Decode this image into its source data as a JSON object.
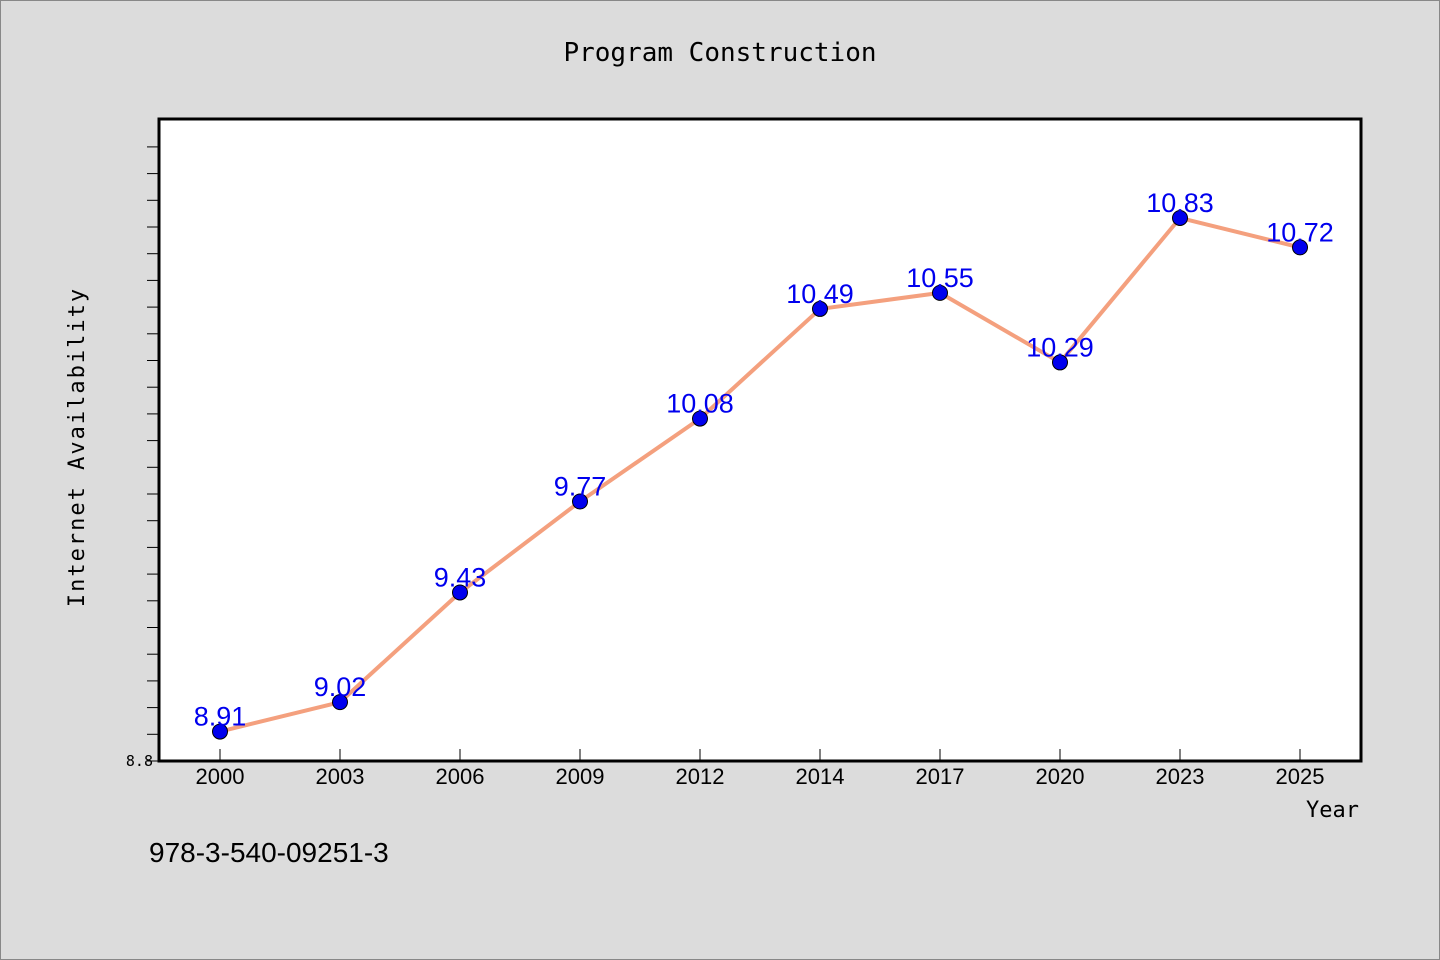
{
  "chart_data": {
    "type": "line",
    "title": "Program Construction",
    "xlabel": "Year",
    "ylabel": "Internet Availability",
    "categories": [
      "2000",
      "2003",
      "2006",
      "2009",
      "2012",
      "2014",
      "2017",
      "2020",
      "2023",
      "2025"
    ],
    "series": [
      {
        "values": [
          8.91,
          9.02,
          9.43,
          9.77,
          10.08,
          10.49,
          10.55,
          10.29,
          10.83,
          10.72
        ],
        "line_color": "#f4a07e",
        "marker_color": "#0000ee",
        "label_color": "#0000ee"
      }
    ],
    "ylim": [
      8.8,
      11.2
    ],
    "ytick_labels": [
      "8.8"
    ],
    "grid": false,
    "legend": "none"
  },
  "footer": {
    "isbn": "978-3-540-09251-3"
  }
}
